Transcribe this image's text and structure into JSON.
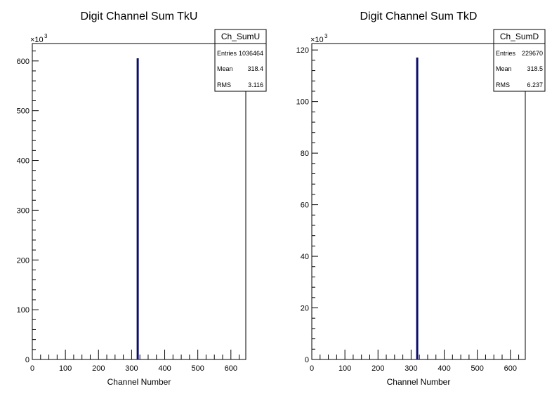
{
  "chart_data": [
    {
      "type": "bar",
      "title": "Digit Channel Sum TkU",
      "xlabel": "Channel Number",
      "ylabel": "",
      "y_multiplier_label": "×10",
      "y_multiplier_exp": "3",
      "xlim": [
        0,
        645
      ],
      "ylim": [
        0,
        635
      ],
      "xticks": [
        0,
        100,
        200,
        300,
        400,
        500,
        600
      ],
      "yticks": [
        0,
        100,
        200,
        300,
        400,
        500,
        600
      ],
      "series": [
        {
          "x": [
            318
          ],
          "values": [
            605
          ]
        }
      ],
      "stats": {
        "name": "Ch_SumU",
        "rows": [
          {
            "label": "Entries",
            "value": "1036464"
          },
          {
            "label": "Mean",
            "value": "318.4"
          },
          {
            "label": "RMS",
            "value": "3.116"
          }
        ]
      },
      "color": "#0d0d6b"
    },
    {
      "type": "bar",
      "title": "Digit Channel Sum TkD",
      "xlabel": "Channel Number",
      "ylabel": "",
      "y_multiplier_label": "×10",
      "y_multiplier_exp": "3",
      "xlim": [
        0,
        645
      ],
      "ylim": [
        0,
        122.5
      ],
      "xticks": [
        0,
        100,
        200,
        300,
        400,
        500,
        600
      ],
      "yticks": [
        0,
        20,
        40,
        60,
        80,
        100,
        120
      ],
      "series": [
        {
          "x": [
            318
          ],
          "values": [
            117
          ]
        }
      ],
      "stats": {
        "name": "Ch_SumD",
        "rows": [
          {
            "label": "Entries",
            "value": "229670"
          },
          {
            "label": "Mean",
            "value": "318.5"
          },
          {
            "label": "RMS",
            "value": "6.237"
          }
        ]
      },
      "color": "#0d0d6b"
    }
  ]
}
